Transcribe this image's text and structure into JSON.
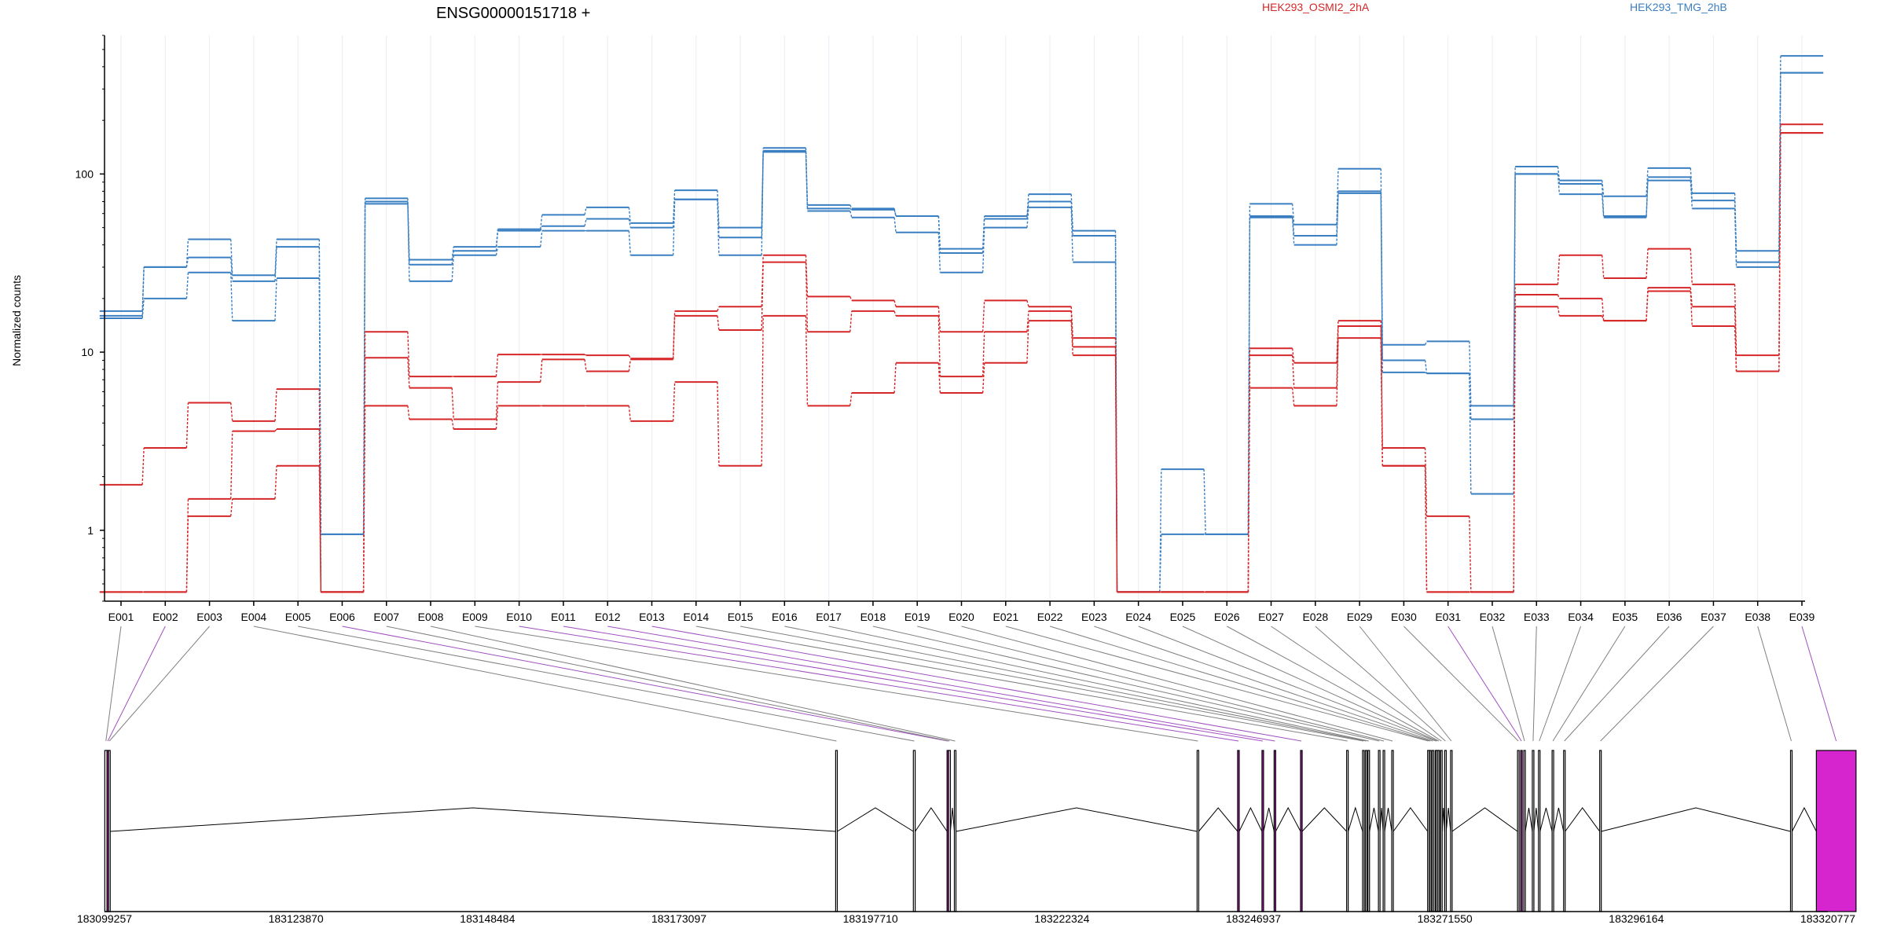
{
  "colors": {
    "OSMI2": "#d62728",
    "TMG": "#3a7fc1",
    "exon_highlight": "#d624cf",
    "connector_gray": "#808080",
    "connector_purple": "#a050c0"
  },
  "chart_data": {
    "type": "line",
    "title": "ENSG00000151718 +",
    "ylabel": "Normalized counts",
    "yscale": "log",
    "ylim": [
      0.4,
      600
    ],
    "yticks": [
      1,
      10,
      100
    ],
    "grid": "vertical",
    "legend": [
      {
        "name": "HEK293_OSMI2_2hA",
        "color": "#d62728"
      },
      {
        "name": "HEK293_TMG_2hB",
        "color": "#3a7fc1"
      }
    ],
    "categories": [
      "E001",
      "E002",
      "E003",
      "E004",
      "E005",
      "E006",
      "E007",
      "E008",
      "E009",
      "E010",
      "E011",
      "E012",
      "E013",
      "E014",
      "E015",
      "E016",
      "E017",
      "E018",
      "E019",
      "E020",
      "E021",
      "E022",
      "E023",
      "E024",
      "E025",
      "E026",
      "E027",
      "E028",
      "E029",
      "E030",
      "E031",
      "E032",
      "E033",
      "E034",
      "E035",
      "E036",
      "E037",
      "E038",
      "E039"
    ],
    "series": [
      {
        "group": "HEK293_TMG_2hB",
        "values": [
          17,
          30,
          43,
          27,
          43,
          0.95,
          73,
          33,
          39,
          49,
          59,
          65,
          53,
          81,
          50,
          140,
          67,
          64,
          58,
          38,
          58,
          77,
          48,
          0.45,
          2.2,
          0.95,
          68,
          52,
          107,
          11,
          11.5,
          5,
          110,
          92,
          75,
          108,
          78,
          37,
          460
        ]
      },
      {
        "group": "HEK293_TMG_2hB",
        "values": [
          16,
          30,
          34,
          25,
          39,
          0.95,
          70,
          31,
          37,
          48,
          51,
          56,
          50,
          72,
          44,
          135,
          64,
          63,
          58,
          36,
          56,
          70,
          45,
          0.45,
          0.95,
          0.95,
          58,
          45,
          80,
          9,
          7.6,
          4.2,
          100,
          88,
          58,
          96,
          71,
          32,
          370
        ]
      },
      {
        "group": "HEK293_TMG_2hB",
        "values": [
          15.5,
          20,
          28,
          15,
          26,
          0.45,
          68,
          25,
          35,
          39,
          48,
          48,
          35,
          72,
          35,
          133,
          62,
          57,
          47,
          28,
          50,
          65,
          32,
          0.45,
          0.45,
          0.45,
          57,
          40,
          78,
          7.7,
          7.6,
          1.6,
          100,
          77,
          57,
          92,
          64,
          30,
          370
        ]
      },
      {
        "group": "HEK293_OSMI2_2hA",
        "values": [
          1.8,
          2.9,
          5.2,
          4.1,
          6.2,
          0.45,
          13,
          7.3,
          7.3,
          9.7,
          9.7,
          9.6,
          9.2,
          17,
          18,
          35,
          20.5,
          19.5,
          18,
          13,
          19.5,
          18,
          12,
          0.45,
          0.45,
          0.45,
          10.5,
          8.7,
          15,
          2.9,
          1.2,
          0.45,
          24,
          35,
          26,
          38,
          24,
          9.6,
          190
        ]
      },
      {
        "group": "HEK293_OSMI2_2hA",
        "values": [
          0.45,
          0.45,
          1.5,
          3.6,
          3.7,
          0.45,
          9.3,
          6.3,
          4.2,
          6.8,
          9.1,
          7.8,
          9.1,
          16,
          13.3,
          32,
          13,
          17,
          16,
          7.3,
          13,
          17,
          10.7,
          0.45,
          0.45,
          0.45,
          9.6,
          6.3,
          14,
          2.3,
          0.45,
          0.45,
          21,
          20,
          15,
          23,
          18,
          7.8,
          170
        ]
      },
      {
        "group": "HEK293_OSMI2_2hA",
        "values": [
          0.45,
          0.45,
          1.2,
          1.5,
          2.3,
          0.45,
          5,
          4.2,
          3.7,
          5,
          5,
          5,
          4.1,
          6.8,
          2.3,
          16,
          5,
          5.9,
          8.7,
          5.9,
          8.7,
          15,
          9.6,
          0.45,
          0.45,
          0.45,
          6.3,
          5,
          12,
          2.3,
          0.45,
          0.45,
          18,
          16,
          15,
          22,
          14,
          7.8,
          170
        ]
      }
    ],
    "gene_model": {
      "coordinate_ticks": [
        "183099257",
        "183123870",
        "183148484",
        "183173097",
        "183197710",
        "183222324",
        "183246937",
        "183271550",
        "183296164",
        "183320777"
      ],
      "exons": [
        {
          "start": 183099290,
          "end": 183099580,
          "highlight": false
        },
        {
          "start": 183099580,
          "end": 183099780,
          "highlight": true
        },
        {
          "start": 183099780,
          "end": 183099990,
          "highlight": false
        },
        {
          "start": 183193240,
          "end": 183193450,
          "highlight": false
        },
        {
          "start": 183203230,
          "end": 183203460,
          "highlight": false
        },
        {
          "start": 183207560,
          "end": 183207760,
          "highlight": true
        },
        {
          "start": 183207760,
          "end": 183207990,
          "highlight": false
        },
        {
          "start": 183208500,
          "end": 183208700,
          "highlight": false
        },
        {
          "start": 183239700,
          "end": 183239910,
          "highlight": false
        },
        {
          "start": 183244910,
          "end": 183245110,
          "highlight": true
        },
        {
          "start": 183248040,
          "end": 183248240,
          "highlight": true
        },
        {
          "start": 183249600,
          "end": 183249800,
          "highlight": true
        },
        {
          "start": 183253000,
          "end": 183253200,
          "highlight": true
        },
        {
          "start": 183258920,
          "end": 183259120,
          "highlight": false
        },
        {
          "start": 183260970,
          "end": 183261170,
          "highlight": false
        },
        {
          "start": 183261330,
          "end": 183261530,
          "highlight": false
        },
        {
          "start": 183261660,
          "end": 183261860,
          "highlight": false
        },
        {
          "start": 183263010,
          "end": 183263210,
          "highlight": false
        },
        {
          "start": 183263610,
          "end": 183263810,
          "highlight": false
        },
        {
          "start": 183264720,
          "end": 183264920,
          "highlight": false
        },
        {
          "start": 183269330,
          "end": 183269530,
          "highlight": false
        },
        {
          "start": 183269570,
          "end": 183269770,
          "highlight": false
        },
        {
          "start": 183269900,
          "end": 183270100,
          "highlight": false
        },
        {
          "start": 183270300,
          "end": 183270500,
          "highlight": false
        },
        {
          "start": 183270440,
          "end": 183270640,
          "highlight": false
        },
        {
          "start": 183270660,
          "end": 183270860,
          "highlight": false
        },
        {
          "start": 183271000,
          "end": 183271200,
          "highlight": false
        },
        {
          "start": 183271520,
          "end": 183271720,
          "highlight": false
        },
        {
          "start": 183272280,
          "end": 183272480,
          "highlight": false
        },
        {
          "start": 183280890,
          "end": 183281090,
          "highlight": false
        },
        {
          "start": 183281290,
          "end": 183281490,
          "highlight": true
        },
        {
          "start": 183281690,
          "end": 183281890,
          "highlight": false
        },
        {
          "start": 183282790,
          "end": 183282990,
          "highlight": false
        },
        {
          "start": 183283580,
          "end": 183283780,
          "highlight": false
        },
        {
          "start": 183285330,
          "end": 183285530,
          "highlight": false
        },
        {
          "start": 183286810,
          "end": 183287010,
          "highlight": false
        },
        {
          "start": 183291450,
          "end": 183291650,
          "highlight": false
        },
        {
          "start": 183315980,
          "end": 183316180,
          "highlight": false
        },
        {
          "start": 183319300,
          "end": 183324400,
          "highlight": true
        }
      ]
    }
  }
}
